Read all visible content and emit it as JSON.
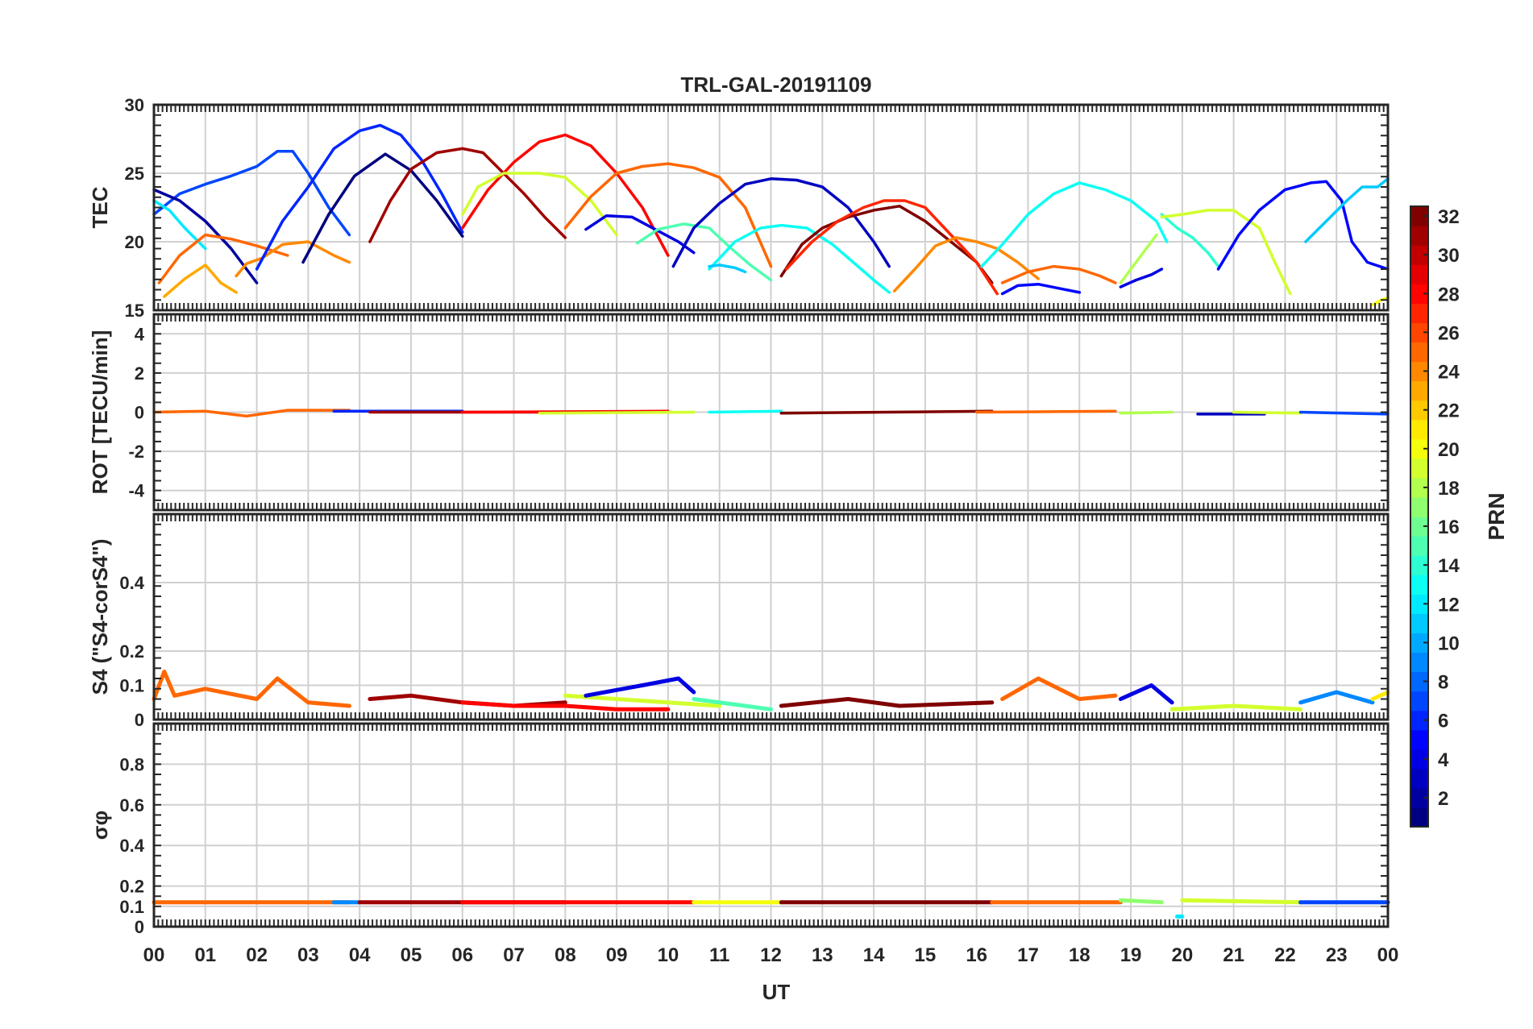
{
  "title": "TRL-GAL-20191109",
  "xlabel": "UT",
  "x_ticks": [
    "00",
    "01",
    "02",
    "03",
    "04",
    "05",
    "06",
    "07",
    "08",
    "09",
    "10",
    "11",
    "12",
    "13",
    "14",
    "15",
    "16",
    "17",
    "18",
    "19",
    "20",
    "21",
    "22",
    "23",
    "00"
  ],
  "colorbar": {
    "label": "PRN",
    "range": [
      1,
      32
    ],
    "ticks": [
      2,
      4,
      6,
      8,
      10,
      12,
      14,
      16,
      18,
      20,
      22,
      24,
      26,
      28,
      30,
      32
    ],
    "colormap": "jet"
  },
  "chart_data": [
    {
      "type": "line",
      "panel": "TEC",
      "ylabel": "TEC",
      "ylim": [
        15,
        30
      ],
      "y_ticks": [
        15,
        20,
        25,
        30
      ],
      "xlim": [
        0,
        24
      ],
      "grid": true,
      "series": [
        {
          "prn": 7,
          "x": [
            0.0,
            0.5,
            1.0,
            1.5,
            2.0,
            2.4,
            2.7,
            3.0,
            3.4,
            3.8
          ],
          "y": [
            22.0,
            23.5,
            24.2,
            24.8,
            25.5,
            26.6,
            26.6,
            25.0,
            22.5,
            20.5
          ]
        },
        {
          "prn": 12,
          "x": [
            0.0,
            0.3,
            0.6,
            1.0
          ],
          "y": [
            23.0,
            22.3,
            21.0,
            19.5
          ]
        },
        {
          "prn": 2,
          "x": [
            0.0,
            0.5,
            1.0,
            1.5,
            2.0
          ],
          "y": [
            23.8,
            23.0,
            21.5,
            19.5,
            17.0
          ]
        },
        {
          "prn": 25,
          "x": [
            0.1,
            0.5,
            1.0,
            1.5,
            2.0,
            2.6
          ],
          "y": [
            17.0,
            19.0,
            20.5,
            20.2,
            19.7,
            19.0
          ]
        },
        {
          "prn": 23,
          "x": [
            0.2,
            0.6,
            1.0,
            1.3,
            1.6
          ],
          "y": [
            16.0,
            17.3,
            18.3,
            17.0,
            16.3
          ]
        },
        {
          "prn": 24,
          "x": [
            1.6,
            1.8,
            2.1,
            2.5,
            3.0,
            3.5,
            3.8
          ],
          "y": [
            17.5,
            18.4,
            18.8,
            19.8,
            20.0,
            19.0,
            18.5
          ]
        },
        {
          "prn": 6,
          "x": [
            2.0,
            2.5,
            3.0,
            3.5,
            4.0,
            4.4,
            4.8,
            5.2,
            5.6,
            6.0
          ],
          "y": [
            18.0,
            21.5,
            24.0,
            26.8,
            28.1,
            28.5,
            27.8,
            26.0,
            23.5,
            20.7
          ]
        },
        {
          "prn": 1,
          "x": [
            2.9,
            3.4,
            3.9,
            4.5,
            5.0,
            5.5,
            6.0
          ],
          "y": [
            18.5,
            22.0,
            24.8,
            26.4,
            25.2,
            23.0,
            20.4
          ]
        },
        {
          "prn": 31,
          "x": [
            4.2,
            4.6,
            5.0,
            5.5,
            6.0,
            6.4,
            6.8,
            7.2,
            7.6,
            8.0
          ],
          "y": [
            20.0,
            23.0,
            25.3,
            26.5,
            26.8,
            26.5,
            25.0,
            23.5,
            21.8,
            20.3
          ]
        },
        {
          "prn": 28,
          "x": [
            6.0,
            6.5,
            7.0,
            7.5,
            8.0,
            8.5,
            9.0,
            9.5,
            10.0
          ],
          "y": [
            21.0,
            23.8,
            25.8,
            27.3,
            27.8,
            27.0,
            25.0,
            22.5,
            19.0
          ]
        },
        {
          "prn": 19,
          "x": [
            6.0,
            6.3,
            6.8,
            7.5,
            8.0,
            8.5,
            9.0
          ],
          "y": [
            22.0,
            24.0,
            25.0,
            25.0,
            24.7,
            23.0,
            20.5
          ]
        },
        {
          "prn": 25,
          "x": [
            8.0,
            8.5,
            9.0,
            9.5,
            10.0,
            10.5,
            11.0,
            11.5,
            12.0
          ],
          "y": [
            21.0,
            23.3,
            25.0,
            25.5,
            25.7,
            25.4,
            24.7,
            22.5,
            18.2
          ]
        },
        {
          "prn": 4,
          "x": [
            8.4,
            8.8,
            9.3,
            9.8,
            10.2,
            10.5
          ],
          "y": [
            20.9,
            21.9,
            21.8,
            20.8,
            20.0,
            19.2
          ]
        },
        {
          "prn": 15,
          "x": [
            9.4,
            9.8,
            10.3,
            10.8,
            11.2,
            11.6,
            12.0
          ],
          "y": [
            19.9,
            20.9,
            21.3,
            21.0,
            19.6,
            18.3,
            17.2
          ]
        },
        {
          "prn": 3,
          "x": [
            10.1,
            10.5,
            11.0,
            11.5,
            12.0,
            12.5,
            13.0,
            13.5,
            14.0,
            14.3
          ],
          "y": [
            18.2,
            21.0,
            22.8,
            24.2,
            24.6,
            24.5,
            24.0,
            22.5,
            20.0,
            18.2
          ]
        },
        {
          "prn": 13,
          "x": [
            10.8,
            11.3,
            11.8,
            12.2,
            12.7,
            13.2,
            13.6,
            14.0,
            14.3
          ],
          "y": [
            18.0,
            20.0,
            21.0,
            21.2,
            21.0,
            19.8,
            18.5,
            17.2,
            16.3
          ]
        },
        {
          "prn": 11,
          "x": [
            10.8,
            11.0,
            11.3,
            11.5
          ],
          "y": [
            18.2,
            18.3,
            18.1,
            17.8
          ]
        },
        {
          "prn": 32,
          "x": [
            12.2,
            12.6,
            13.0,
            13.5,
            14.0,
            14.5,
            15.0,
            15.5,
            16.0,
            16.3
          ],
          "y": [
            17.5,
            19.8,
            21.0,
            21.8,
            22.3,
            22.6,
            21.5,
            20.0,
            18.5,
            17.0
          ]
        },
        {
          "prn": 27,
          "x": [
            12.3,
            12.8,
            13.3,
            13.8,
            14.2,
            14.6,
            15.0,
            15.5,
            16.0,
            16.4
          ],
          "y": [
            18.0,
            20.0,
            21.5,
            22.5,
            23.0,
            23.0,
            22.5,
            20.5,
            18.5,
            16.2
          ]
        },
        {
          "prn": 24,
          "x": [
            14.4,
            14.8,
            15.2,
            15.6,
            16.0,
            16.4,
            16.8,
            17.2
          ],
          "y": [
            16.4,
            18.0,
            19.7,
            20.3,
            20.0,
            19.5,
            18.5,
            17.3
          ]
        },
        {
          "prn": 13,
          "x": [
            16.1,
            16.5,
            17.0,
            17.5,
            18.0,
            18.5,
            19.0,
            19.5,
            19.7
          ],
          "y": [
            18.2,
            19.8,
            22.0,
            23.5,
            24.3,
            23.8,
            23.0,
            21.5,
            20.0
          ]
        },
        {
          "prn": 25,
          "x": [
            16.5,
            17.0,
            17.5,
            18.0,
            18.4,
            18.7
          ],
          "y": [
            17.0,
            17.8,
            18.2,
            18.0,
            17.5,
            17.0
          ]
        },
        {
          "prn": 5,
          "x": [
            16.5,
            16.8,
            17.2,
            17.6,
            18.0
          ],
          "y": [
            16.2,
            16.8,
            16.9,
            16.6,
            16.3
          ]
        },
        {
          "prn": 18,
          "x": [
            18.8,
            19.2,
            19.5
          ],
          "y": [
            17.0,
            19.0,
            20.5
          ]
        },
        {
          "prn": 4,
          "x": [
            18.8,
            19.1,
            19.4,
            19.6
          ],
          "y": [
            16.7,
            17.2,
            17.6,
            18.0
          ]
        },
        {
          "prn": 14,
          "x": [
            19.6,
            19.9,
            20.2,
            20.5,
            20.7
          ],
          "y": [
            22.0,
            21.0,
            20.3,
            19.2,
            18.2
          ]
        },
        {
          "prn": 19,
          "x": [
            19.6,
            20.0,
            20.5,
            21.0,
            21.5,
            21.8,
            22.1
          ],
          "y": [
            21.8,
            22.0,
            22.3,
            22.3,
            21.0,
            18.5,
            16.2
          ]
        },
        {
          "prn": 5,
          "x": [
            20.7,
            21.1,
            21.5,
            22.0,
            22.5,
            22.8,
            23.1,
            23.3,
            23.6,
            24.0
          ],
          "y": [
            18.0,
            20.5,
            22.3,
            23.8,
            24.3,
            24.4,
            23.0,
            20.0,
            18.5,
            18.0
          ]
        },
        {
          "prn": 11,
          "x": [
            22.4,
            22.8,
            23.2,
            23.5,
            23.8,
            24.0
          ],
          "y": [
            20.0,
            21.5,
            23.0,
            24.0,
            24.0,
            24.6
          ]
        },
        {
          "prn": 20,
          "x": [
            23.7,
            23.9,
            24.0
          ],
          "y": [
            15.4,
            15.8,
            15.9
          ]
        }
      ]
    },
    {
      "type": "line",
      "panel": "ROT",
      "ylabel": "ROT [TECU/min]",
      "ylim": [
        -5,
        5
      ],
      "y_ticks": [
        -4,
        -2,
        0,
        2,
        4
      ],
      "xlim": [
        0,
        24
      ],
      "grid": true,
      "series": [
        {
          "prn": 25,
          "x": [
            0.0,
            1.0,
            1.8,
            2.6,
            3.8
          ],
          "y": [
            0.0,
            0.05,
            -0.2,
            0.1,
            0.1
          ]
        },
        {
          "prn": 6,
          "x": [
            3.5,
            6.0
          ],
          "y": [
            0.05,
            0.05
          ]
        },
        {
          "prn": 31,
          "x": [
            4.2,
            8.0
          ],
          "y": [
            0.0,
            0.0
          ]
        },
        {
          "prn": 28,
          "x": [
            6.0,
            10.0
          ],
          "y": [
            0.0,
            0.05
          ]
        },
        {
          "prn": 19,
          "x": [
            7.5,
            10.5
          ],
          "y": [
            -0.05,
            0.0
          ]
        },
        {
          "prn": 13,
          "x": [
            10.8,
            12.2
          ],
          "y": [
            0.0,
            0.05
          ]
        },
        {
          "prn": 32,
          "x": [
            12.2,
            16.3
          ],
          "y": [
            -0.05,
            0.05
          ]
        },
        {
          "prn": 25,
          "x": [
            16.0,
            18.7
          ],
          "y": [
            0.0,
            0.05
          ]
        },
        {
          "prn": 18,
          "x": [
            18.8,
            19.8
          ],
          "y": [
            -0.05,
            0.0
          ]
        },
        {
          "prn": 3,
          "x": [
            20.3,
            21.6
          ],
          "y": [
            -0.1,
            -0.1
          ]
        },
        {
          "prn": 19,
          "x": [
            21.0,
            22.3
          ],
          "y": [
            0.0,
            -0.05
          ]
        },
        {
          "prn": 7,
          "x": [
            22.3,
            24.0
          ],
          "y": [
            0.0,
            -0.1
          ]
        }
      ]
    },
    {
      "type": "line",
      "panel": "S4",
      "ylabel": "S4 (\"S4-corS4\")",
      "ylim": [
        0,
        0.6
      ],
      "y_ticks": [
        0,
        0.1,
        0.2,
        0.4
      ],
      "xlim": [
        0,
        24
      ],
      "grid": true,
      "series": [
        {
          "prn": 25,
          "x": [
            0.0,
            0.2,
            0.4,
            1.0,
            2.0,
            2.4,
            3.0,
            3.8
          ],
          "y": [
            0.06,
            0.14,
            0.07,
            0.09,
            0.06,
            0.12,
            0.05,
            0.04
          ]
        },
        {
          "prn": 31,
          "x": [
            4.2,
            5.0,
            6.0,
            7.0,
            8.0
          ],
          "y": [
            0.06,
            0.07,
            0.05,
            0.04,
            0.05
          ]
        },
        {
          "prn": 28,
          "x": [
            6.0,
            7.0,
            8.0,
            9.0,
            10.0
          ],
          "y": [
            0.05,
            0.04,
            0.04,
            0.03,
            0.03
          ]
        },
        {
          "prn": 19,
          "x": [
            8.0,
            9.0,
            10.0,
            11.0
          ],
          "y": [
            0.07,
            0.06,
            0.05,
            0.04
          ]
        },
        {
          "prn": 4,
          "x": [
            8.4,
            9.5,
            10.2,
            10.5
          ],
          "y": [
            0.07,
            0.1,
            0.12,
            0.08
          ]
        },
        {
          "prn": 15,
          "x": [
            10.5,
            11.5,
            12.0
          ],
          "y": [
            0.06,
            0.04,
            0.03
          ]
        },
        {
          "prn": 32,
          "x": [
            12.2,
            13.5,
            14.5,
            16.3
          ],
          "y": [
            0.04,
            0.06,
            0.04,
            0.05
          ]
        },
        {
          "prn": 25,
          "x": [
            16.5,
            17.2,
            18.0,
            18.7
          ],
          "y": [
            0.06,
            0.12,
            0.06,
            0.07
          ]
        },
        {
          "prn": 4,
          "x": [
            18.8,
            19.4,
            19.8
          ],
          "y": [
            0.06,
            0.1,
            0.05
          ]
        },
        {
          "prn": 19,
          "x": [
            19.8,
            21.0,
            22.3
          ],
          "y": [
            0.03,
            0.04,
            0.03
          ]
        },
        {
          "prn": 9,
          "x": [
            22.3,
            23.0,
            23.7
          ],
          "y": [
            0.05,
            0.08,
            0.05
          ]
        },
        {
          "prn": 21,
          "x": [
            23.7,
            24.0
          ],
          "y": [
            0.06,
            0.08
          ]
        }
      ]
    },
    {
      "type": "line",
      "panel": "sigma_phi",
      "ylabel": "σφ",
      "ylim": [
        0,
        1
      ],
      "y_ticks": [
        0,
        0.1,
        0.2,
        0.4,
        0.6,
        0.8
      ],
      "xlim": [
        0,
        24
      ],
      "grid": true,
      "series": [
        {
          "prn": 25,
          "x": [
            0.0,
            3.8
          ],
          "y": [
            0.12,
            0.12
          ]
        },
        {
          "prn": 9,
          "x": [
            3.5,
            4.0
          ],
          "y": [
            0.12,
            0.12
          ]
        },
        {
          "prn": 31,
          "x": [
            4.0,
            8.0
          ],
          "y": [
            0.12,
            0.12
          ]
        },
        {
          "prn": 28,
          "x": [
            6.0,
            10.5
          ],
          "y": [
            0.12,
            0.12
          ]
        },
        {
          "prn": 20,
          "x": [
            10.5,
            12.2
          ],
          "y": [
            0.12,
            0.12
          ]
        },
        {
          "prn": 32,
          "x": [
            12.2,
            16.3
          ],
          "y": [
            0.12,
            0.12
          ]
        },
        {
          "prn": 25,
          "x": [
            16.3,
            18.8
          ],
          "y": [
            0.12,
            0.12
          ]
        },
        {
          "prn": 17,
          "x": [
            18.8,
            19.6
          ],
          "y": [
            0.13,
            0.12
          ]
        },
        {
          "prn": 12,
          "x": [
            19.9,
            20.0
          ],
          "y": [
            0.05,
            0.05
          ]
        },
        {
          "prn": 19,
          "x": [
            20.0,
            22.3
          ],
          "y": [
            0.13,
            0.12
          ]
        },
        {
          "prn": 7,
          "x": [
            22.3,
            24.0
          ],
          "y": [
            0.12,
            0.12
          ]
        }
      ]
    }
  ]
}
